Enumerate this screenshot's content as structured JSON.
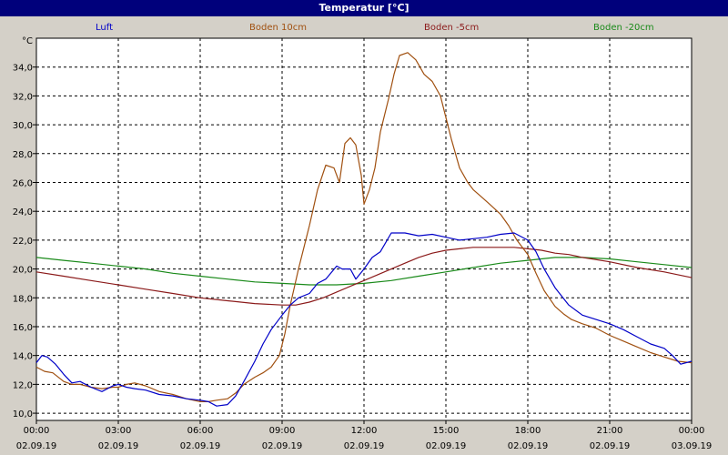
{
  "window": {
    "title": "Temperatur [°C]"
  },
  "legend": [
    {
      "name": "Luft",
      "color": "#0000c8"
    },
    {
      "name": "Boden 10cm",
      "color": "#a05010"
    },
    {
      "name": "Boden -5cm",
      "color": "#8b1a1a"
    },
    {
      "name": "Boden -20cm",
      "color": "#1a8a1a"
    }
  ],
  "chart_data": {
    "type": "line",
    "title": "Temperatur [°C]",
    "ylabel": "°C",
    "xlabel": "",
    "ylim": [
      9.5,
      36
    ],
    "xlim": [
      0,
      24
    ],
    "grid": true,
    "legend_position": "top",
    "y_ticks": [
      "10,0",
      "12,0",
      "14,0",
      "16,0",
      "18,0",
      "20,0",
      "22,0",
      "24,0",
      "26,0",
      "28,0",
      "30,0",
      "32,0",
      "34,0"
    ],
    "x_ticks": [
      {
        "time": "00:00",
        "date": "02.09.19"
      },
      {
        "time": "03:00",
        "date": "02.09.19"
      },
      {
        "time": "06:00",
        "date": "02.09.19"
      },
      {
        "time": "09:00",
        "date": "02.09.19"
      },
      {
        "time": "12:00",
        "date": "02.09.19"
      },
      {
        "time": "15:00",
        "date": "02.09.19"
      },
      {
        "time": "18:00",
        "date": "02.09.19"
      },
      {
        "time": "21:00",
        "date": "02.09.19"
      },
      {
        "time": "00:00",
        "date": "03.09.19"
      }
    ],
    "series": [
      {
        "name": "Luft",
        "color": "#0000c8",
        "x": [
          0,
          0.2,
          0.4,
          0.7,
          1,
          1.3,
          1.6,
          2,
          2.4,
          2.8,
          3,
          3.3,
          3.6,
          4,
          4.5,
          5,
          5.5,
          6,
          6.3,
          6.6,
          7,
          7.3,
          7.6,
          8,
          8.3,
          8.6,
          9,
          9.3,
          9.6,
          10,
          10.3,
          10.6,
          11,
          11.2,
          11.5,
          11.7,
          12,
          12.3,
          12.6,
          13,
          13.5,
          14,
          14.5,
          15,
          15.5,
          16,
          16.5,
          17,
          17.5,
          18,
          18.3,
          18.6,
          19,
          19.5,
          20,
          20.5,
          21,
          21.5,
          22,
          22.5,
          23,
          23.3,
          23.6,
          24
        ],
        "y": [
          13.5,
          14.0,
          13.9,
          13.4,
          12.7,
          12.1,
          12.2,
          11.8,
          11.5,
          11.9,
          12.0,
          11.8,
          11.7,
          11.6,
          11.3,
          11.2,
          11.0,
          10.9,
          10.8,
          10.5,
          10.6,
          11.2,
          12.2,
          13.6,
          14.8,
          15.8,
          16.8,
          17.5,
          18.0,
          18.3,
          19.0,
          19.3,
          20.2,
          20.0,
          20.0,
          19.3,
          20.0,
          20.8,
          21.2,
          22.5,
          22.5,
          22.3,
          22.4,
          22.2,
          22.0,
          22.1,
          22.2,
          22.4,
          22.5,
          22.0,
          21.2,
          20.0,
          18.7,
          17.5,
          16.8,
          16.5,
          16.2,
          15.8,
          15.3,
          14.8,
          14.5,
          14.0,
          13.4,
          13.6
        ]
      },
      {
        "name": "Boden 10cm",
        "color": "#a05010",
        "x": [
          0,
          0.3,
          0.6,
          1,
          1.3,
          1.6,
          2,
          2.4,
          2.8,
          3,
          3.3,
          3.6,
          4,
          4.5,
          5,
          5.5,
          6,
          6.3,
          6.6,
          7,
          7.3,
          7.6,
          8,
          8.3,
          8.6,
          8.9,
          9.1,
          9.3,
          9.6,
          10,
          10.3,
          10.6,
          10.9,
          11.1,
          11.3,
          11.5,
          11.7,
          11.9,
          12,
          12.2,
          12.4,
          12.6,
          12.9,
          13.1,
          13.3,
          13.6,
          13.9,
          14.2,
          14.5,
          14.8,
          15,
          15.2,
          15.5,
          15.8,
          16,
          16.3,
          16.6,
          17,
          17.3,
          17.6,
          18,
          18.3,
          18.6,
          19,
          19.3,
          19.6,
          20,
          20.5,
          21,
          21.5,
          22,
          22.5,
          23,
          23.5,
          24
        ],
        "y": [
          13.2,
          12.9,
          12.8,
          12.2,
          12.0,
          12.0,
          11.8,
          11.7,
          11.8,
          11.8,
          12.0,
          12.1,
          11.9,
          11.5,
          11.3,
          11.0,
          10.8,
          10.8,
          10.9,
          11.0,
          11.4,
          12.0,
          12.5,
          12.8,
          13.2,
          14.0,
          15.5,
          17.5,
          20.0,
          23.0,
          25.5,
          27.2,
          27.0,
          26.0,
          28.7,
          29.1,
          28.6,
          26.5,
          24.5,
          25.5,
          27.0,
          29.5,
          31.8,
          33.5,
          34.8,
          35.0,
          34.5,
          33.5,
          33.0,
          32.0,
          30.5,
          29.0,
          27.0,
          26.0,
          25.5,
          25.0,
          24.5,
          23.8,
          23.0,
          22.0,
          21.0,
          19.7,
          18.5,
          17.4,
          16.9,
          16.5,
          16.2,
          15.9,
          15.4,
          15.0,
          14.6,
          14.2,
          13.9,
          13.6,
          13.5
        ]
      },
      {
        "name": "Boden -5cm",
        "color": "#8b1a1a",
        "x": [
          0,
          1,
          2,
          3,
          4,
          5,
          6,
          7,
          8,
          9,
          9.5,
          10,
          10.5,
          11,
          11.5,
          12,
          12.5,
          13,
          13.5,
          14,
          14.5,
          15,
          15.5,
          16,
          16.5,
          17,
          17.5,
          18,
          18.5,
          19,
          19.5,
          20,
          21,
          22,
          23,
          24
        ],
        "y": [
          19.8,
          19.5,
          19.2,
          18.9,
          18.6,
          18.3,
          18.0,
          17.8,
          17.6,
          17.5,
          17.5,
          17.7,
          18.0,
          18.4,
          18.8,
          19.2,
          19.6,
          20.0,
          20.4,
          20.8,
          21.1,
          21.3,
          21.4,
          21.5,
          21.5,
          21.5,
          21.5,
          21.4,
          21.3,
          21.1,
          21.0,
          20.8,
          20.5,
          20.1,
          19.8,
          19.4
        ]
      },
      {
        "name": "Boden -20cm",
        "color": "#1a8a1a",
        "x": [
          0,
          1,
          2,
          3,
          4,
          5,
          6,
          7,
          8,
          9,
          10,
          11,
          12,
          13,
          14,
          15,
          16,
          17,
          18,
          19,
          20,
          21,
          22,
          23,
          24
        ],
        "y": [
          20.8,
          20.6,
          20.4,
          20.2,
          20.0,
          19.7,
          19.5,
          19.3,
          19.1,
          19.0,
          18.9,
          18.9,
          19.0,
          19.2,
          19.5,
          19.8,
          20.1,
          20.4,
          20.6,
          20.8,
          20.8,
          20.7,
          20.5,
          20.3,
          20.1
        ]
      }
    ]
  }
}
